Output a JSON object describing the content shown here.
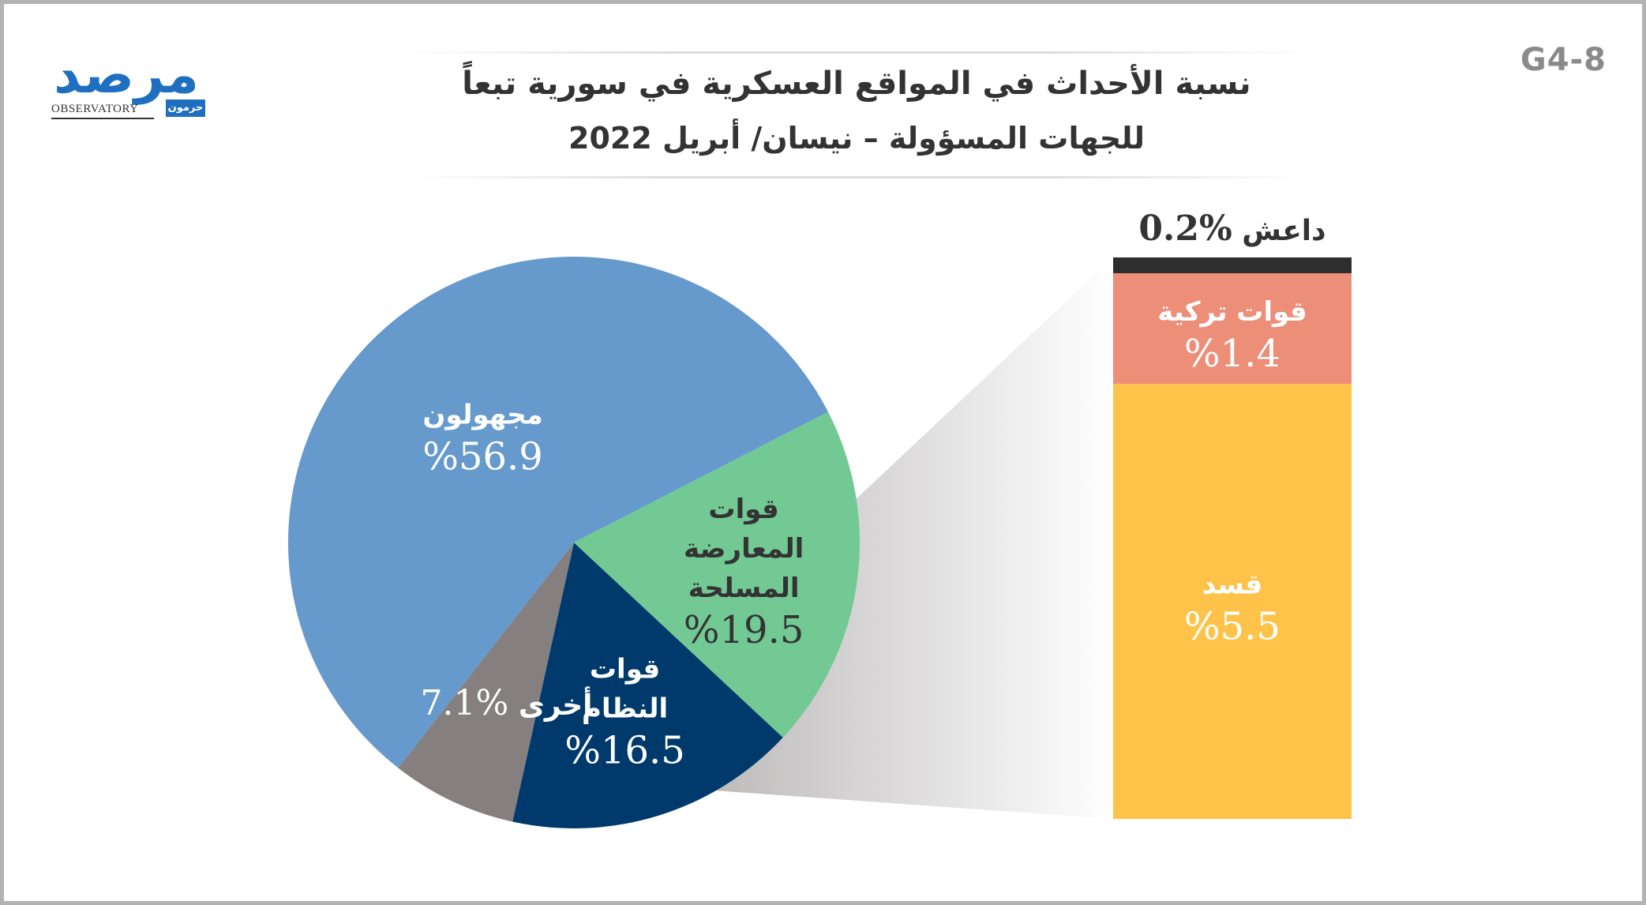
{
  "header": {
    "code": "G4-8",
    "title_line1": "نسبة الأحداث في المواقع العسكرية في سورية تبعاً",
    "title_line2": "للجهات المسؤولة – نيسان/ أبريل 2022"
  },
  "logo": {
    "arabic": "مرصد",
    "english": "OBSERVATORY",
    "sub": "حرمون"
  },
  "colors": {
    "unknown": "#6699cc",
    "opposition": "#72c993",
    "regime": "#003a6c",
    "other": "#857f7f",
    "sdf": "#ffc349",
    "turkish": "#ec8e78",
    "isis": "#2e2e2e",
    "text_dark": "#333333",
    "text_light": "#ffffff"
  },
  "chart_data": {
    "type": "pie",
    "unit": "%",
    "pie": {
      "slices": [
        {
          "label_lines": [
            "قوات",
            "النظام"
          ],
          "value": 16.5,
          "value_text": "%16.5",
          "color_key": "regime"
        },
        {
          "label_lines": [
            "أخرى"
          ],
          "value": 7.1,
          "value_text": "%7.1",
          "color_key": "other",
          "inline": true
        },
        {
          "label_lines": [
            "مجهولون"
          ],
          "value": 56.9,
          "value_text": "%56.9",
          "color_key": "unknown"
        },
        {
          "label_lines": [
            "قوات",
            "المعارضة",
            "المسلحة"
          ],
          "value": 19.5,
          "value_text": "%19.5",
          "color_key": "opposition"
        }
      ]
    },
    "breakdown_of": "أخرى",
    "stack": {
      "type": "stacked-bar",
      "segments": [
        {
          "label": "داعش",
          "value": 0.2,
          "value_text": "%0.2",
          "color_key": "isis"
        },
        {
          "label": "قوات تركية",
          "value": 1.4,
          "value_text": "%1.4",
          "color_key": "turkish"
        },
        {
          "label": "قسد",
          "value": 5.5,
          "value_text": "%5.5",
          "color_key": "sdf"
        }
      ]
    }
  }
}
